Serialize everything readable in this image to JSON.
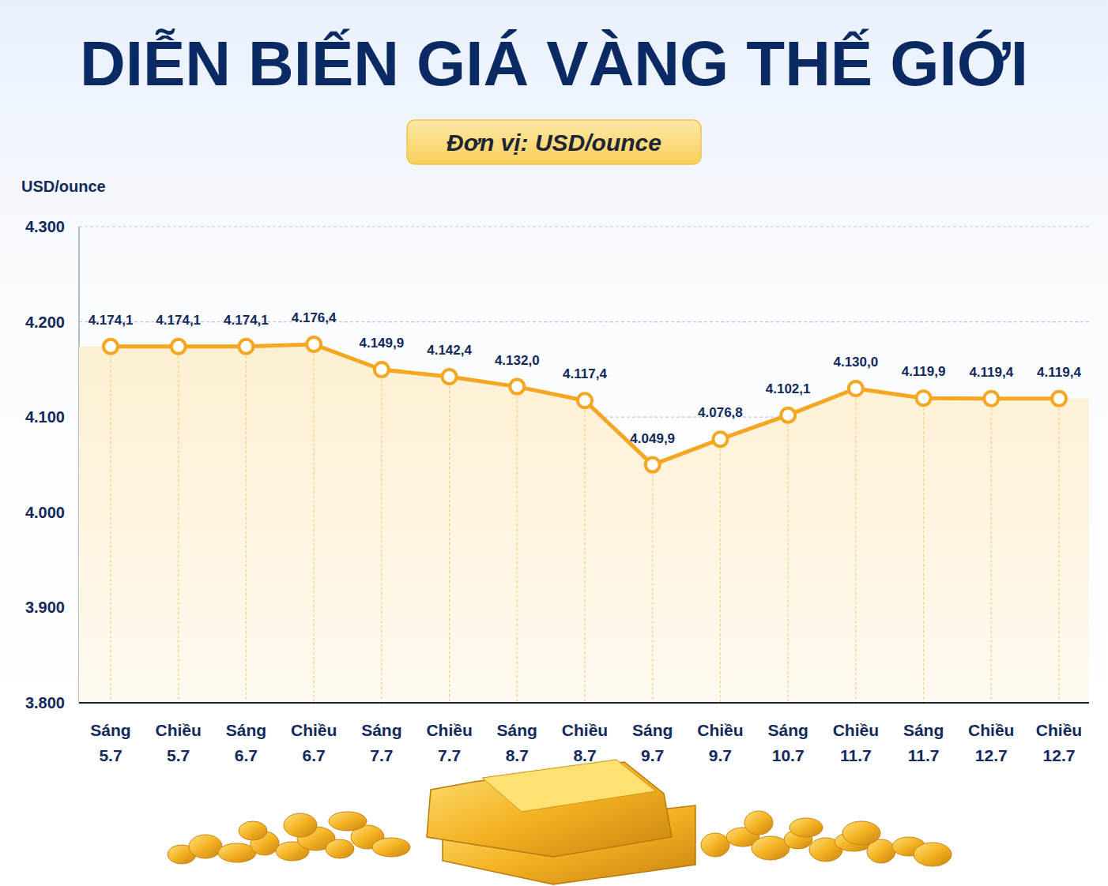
{
  "chart_data": {
    "type": "line",
    "title": "DIỄN BIẾN GIÁ VÀNG THẾ GIỚI",
    "subtitle": "Đơn vị: USD/ounce",
    "y_label": "USD/ounce",
    "categories": [
      "Sáng 5.7",
      "Chiều 5.7",
      "Sáng 6.7",
      "Chiều 6.7",
      "Sáng 7.7",
      "Chiều 7.7",
      "Sáng 8.7",
      "Chiều 8.7",
      "Sáng 9.7",
      "Chiều 9.7",
      "Sáng 10.7",
      "Chiều 11.7",
      "Sáng 11.7",
      "Chiều 12.7",
      "Chiều 12.7"
    ],
    "values": [
      4174.1,
      4174.1,
      4174.1,
      4176.4,
      4149.9,
      4142.4,
      4132.0,
      4117.4,
      4049.9,
      4076.8,
      4102.1,
      4130.0,
      4119.9,
      4119.4,
      4119.4
    ],
    "value_labels": [
      "4.174,1",
      "4.174,1",
      "4.174,1",
      "4.176,4",
      "4.149,9",
      "4.142,4",
      "4.132,0",
      "4.117,4",
      "4.049,9",
      "4.076,8",
      "4.102,1",
      "4.130,0",
      "4.119,9",
      "4.119,4",
      "4.119,4"
    ],
    "color": "#f5a623",
    "marker": "circle",
    "ylim": [
      3800,
      4300
    ],
    "yticks": [
      {
        "value": 3800,
        "label": "3.800"
      },
      {
        "value": 3900,
        "label": "3.900"
      },
      {
        "value": 4000,
        "label": "4.000"
      },
      {
        "value": 4100,
        "label": "4.100"
      },
      {
        "value": 4200,
        "label": "4.200"
      },
      {
        "value": 4300,
        "label": "4.300"
      }
    ],
    "grid": true,
    "data_labels": true
  }
}
